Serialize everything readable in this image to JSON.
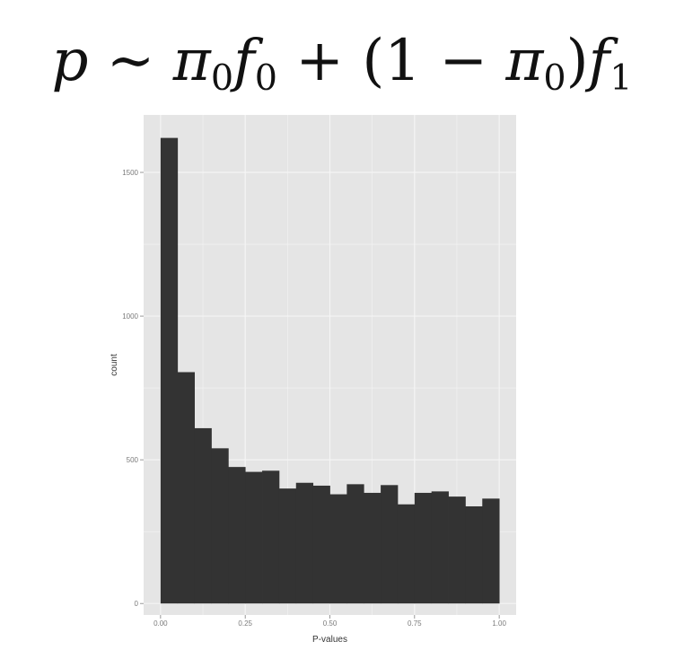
{
  "formula": {
    "p": "p",
    "sim": "∼",
    "pi": "π",
    "f": "f",
    "sub0": "0",
    "sub1": "1",
    "plus": "+",
    "open_paren": "(",
    "one": "1",
    "minus": "−",
    "close_paren": ")"
  },
  "colors": {
    "panel": "#e5e5e5",
    "grid": "#f5f5f5",
    "bar": "#333333"
  },
  "chart_data": {
    "type": "bar",
    "title": "",
    "xlabel": "P-values",
    "ylabel": "count",
    "xlim": [
      -0.05,
      1.05
    ],
    "ylim": [
      -40,
      1700
    ],
    "bin_width": 0.05,
    "bin_starts": [
      0.0,
      0.05,
      0.1,
      0.15,
      0.2,
      0.25,
      0.3,
      0.35,
      0.4,
      0.45,
      0.5,
      0.55,
      0.6,
      0.65,
      0.7,
      0.75,
      0.8,
      0.85,
      0.9,
      0.95
    ],
    "values": [
      1620,
      805,
      610,
      540,
      475,
      458,
      462,
      400,
      420,
      410,
      380,
      415,
      385,
      412,
      345,
      385,
      390,
      372,
      338,
      365
    ],
    "x_ticks": [
      "0.00",
      "0.25",
      "0.50",
      "0.75",
      "1.00"
    ],
    "x_tick_values": [
      0,
      0.25,
      0.5,
      0.75,
      1
    ],
    "y_ticks": [
      "0",
      "500",
      "1000",
      "1500"
    ],
    "y_tick_values": [
      0,
      500,
      1000,
      1500
    ],
    "grid": true
  }
}
